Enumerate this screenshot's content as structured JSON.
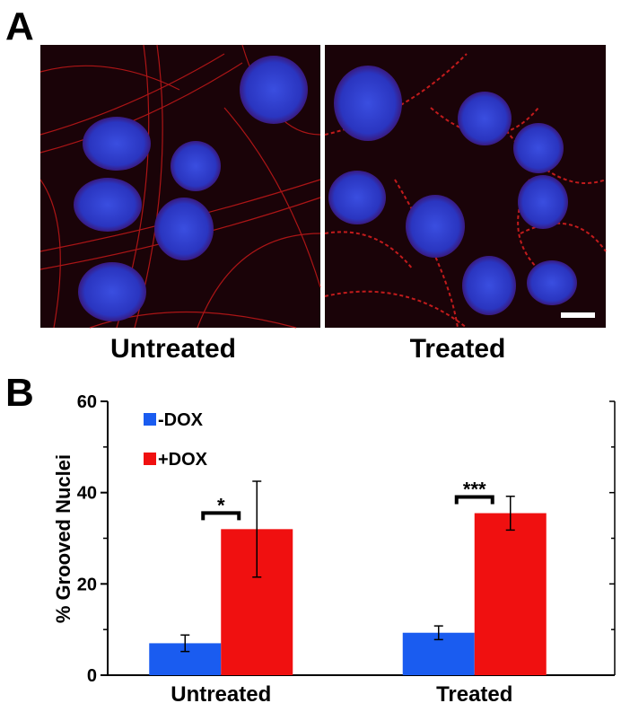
{
  "panel_a": {
    "label": "A",
    "images": [
      {
        "label": "Untreated"
      },
      {
        "label": "Treated"
      }
    ]
  },
  "chart_data": {
    "type": "bar",
    "panel_label": "B",
    "y_label": "% Grooved Nuclei",
    "categories": [
      "Untreated",
      "Treated"
    ],
    "series": [
      {
        "name": "-DOX",
        "color": "#1a5cf0",
        "values": [
          7,
          9.3
        ],
        "errors": [
          1.8,
          1.5
        ]
      },
      {
        "name": "+DOX",
        "color": "#f01010",
        "values": [
          32,
          35.5
        ],
        "errors": [
          10.5,
          3.7
        ]
      }
    ],
    "significance": [
      "*",
      "***"
    ],
    "ylim": [
      0,
      60
    ],
    "yticks": [
      0,
      20,
      40,
      60
    ],
    "yminorticks": [
      10,
      30,
      50
    ],
    "legend": "upper left"
  }
}
